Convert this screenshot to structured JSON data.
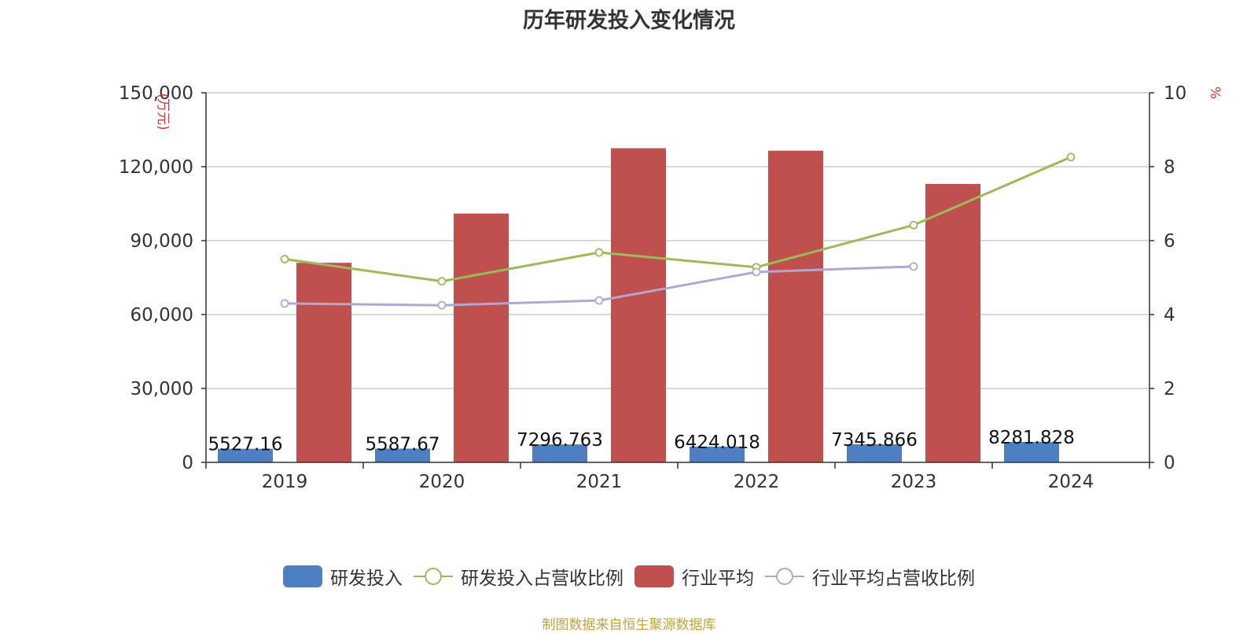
{
  "chart_data": {
    "type": "bar",
    "title": "历年研发投入变化情况",
    "categories": [
      "2019",
      "2020",
      "2021",
      "2022",
      "2023",
      "2024"
    ],
    "y_left": {
      "label": "(万元)",
      "ylim": [
        0,
        150000
      ],
      "ticks": [
        "0",
        "30,000",
        "60,000",
        "90,000",
        "120,000",
        "150,000"
      ]
    },
    "y_right": {
      "label": "%",
      "ylim": [
        0,
        10
      ],
      "ticks": [
        "0",
        "2",
        "4",
        "6",
        "8",
        "10"
      ]
    },
    "series": [
      {
        "name": "研发投入",
        "kind": "bar",
        "axis": "left",
        "color": "#4e7fc0",
        "values": [
          5527.16,
          5587.67,
          7296.763,
          6424.018,
          7345.866,
          8281.828
        ],
        "labels": [
          "5527.16",
          "5587.67",
          "7296.763",
          "6424.018",
          "7345.866",
          "8281.828"
        ]
      },
      {
        "name": "研发投入占营收比例",
        "kind": "line",
        "axis": "right",
        "color": "#9bbb59",
        "values": [
          5.5,
          4.9,
          5.68,
          5.28,
          6.42,
          8.26
        ]
      },
      {
        "name": "行业平均",
        "kind": "bar",
        "axis": "left",
        "color": "#c0504d",
        "values": [
          81000,
          101000,
          127500,
          126500,
          113000,
          null
        ]
      },
      {
        "name": "行业平均占营收比例",
        "kind": "line",
        "axis": "right",
        "color": "#b3a6cf",
        "values": [
          4.3,
          4.25,
          4.38,
          5.15,
          5.3,
          null
        ]
      }
    ],
    "grid": true,
    "legend_position": "bottom"
  },
  "source_text": "制图数据来自恒生聚源数据库"
}
